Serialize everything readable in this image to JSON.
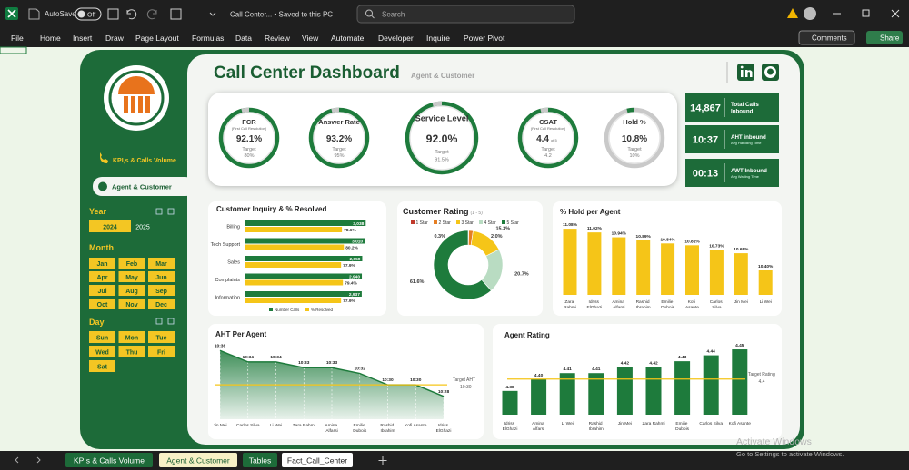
{
  "window": {
    "autosave": "AutoSave",
    "autosave_state": "Off",
    "file_title": "Call Center... • Saved to this PC",
    "search": "Search",
    "menu": [
      "File",
      "Home",
      "Insert",
      "Draw",
      "Page Layout",
      "Formulas",
      "Data",
      "Review",
      "View",
      "Automate",
      "Developer",
      "Inquire",
      "Power Pivot"
    ],
    "comments": "Comments",
    "share": "Share"
  },
  "sheet_tabs": [
    "KPIs & Calls Volume",
    "Agent & Customer",
    "Tables",
    "Fact_Call_Center"
  ],
  "watermark": {
    "title": "Activate Windows",
    "text": "Go to Settings to activate Windows."
  },
  "dashboard": {
    "title": "Call Center Dashboard",
    "subtitle": "Agent & Customer",
    "nav": [
      "KPI,s & Calls Volume",
      "Agent & Customer"
    ],
    "slicers": {
      "year": {
        "title": "Year",
        "items": [
          "2024",
          "2025"
        ]
      },
      "month": {
        "title": "Month",
        "items": [
          "Jan",
          "Feb",
          "Mar",
          "Apr",
          "May",
          "Jun",
          "Jul",
          "Aug",
          "Sep",
          "Oct",
          "Nov",
          "Dec"
        ]
      },
      "day": {
        "title": "Day",
        "items": [
          "Sun",
          "Mon",
          "Tue",
          "Wed",
          "Thu",
          "Fri",
          "Sat"
        ]
      }
    },
    "kpis": [
      {
        "name": "FCR",
        "note": "(First Call Resolution)",
        "value": "92.1%",
        "target_label": "Target",
        "target": "80%"
      },
      {
        "name": "Answer Rate",
        "value": "93.2%",
        "target_label": "Target",
        "target": "95%"
      },
      {
        "name": "Service Level",
        "value": "92.0%",
        "target_label": "Target",
        "target": "91.5%"
      },
      {
        "name": "CSAT",
        "note": "(First Call Resolution)",
        "value": "4.4",
        "value_note": "of 5",
        "target_label": "Target",
        "target": "4.2"
      },
      {
        "name": "Hold %",
        "value": "10.8%",
        "target_label": "Target",
        "target": "10%"
      }
    ],
    "cards": [
      {
        "value": "14,867",
        "title": "Total Calls Inbound"
      },
      {
        "value": "10:37",
        "title": "AHT inbound",
        "note": "Avg Handling Time"
      },
      {
        "value": "00:13",
        "title": "AWT Inbound",
        "note": "Avg Waiting Time"
      }
    ]
  },
  "chart_data": [
    {
      "type": "hbar",
      "title": "Customer Inquiry & % Resolved",
      "categories": [
        "Billing",
        "Tech Support",
        "Sales",
        "Complaints",
        "Information"
      ],
      "series": [
        {
          "name": "Number Calls",
          "color": "#1e7b3c",
          "values": [
            3038,
            3010,
            2950,
            2940,
            2937
          ],
          "value_labels": [
            "3,038",
            "3,010",
            "2,950",
            "2,940",
            "2,937"
          ]
        },
        {
          "name": "% Resolved",
          "color": "#f5c518",
          "axis": "x2",
          "values": [
            78.6,
            80.2,
            77.9,
            79.4,
            77.9
          ],
          "value_labels": [
            "78.6%",
            "80.2%",
            "77.9%",
            "79.4%",
            "77.9%"
          ]
        }
      ],
      "xlim": [
        0,
        3100
      ],
      "x2lim": [
        0,
        100
      ],
      "legend": "bottom"
    },
    {
      "type": "pie",
      "donut": true,
      "title": "Customer Rating",
      "subtitle": "(1 - 5)",
      "categories": [
        "1 Star",
        "2 Star",
        "3 Star",
        "4 Star",
        "5 Star"
      ],
      "values": [
        0.3,
        2.0,
        15.3,
        20.7,
        61.6
      ],
      "value_labels": [
        "0.3%",
        "2.0%",
        "15.3%",
        "20.7%",
        "61.6%"
      ],
      "colors": [
        "#c0392b",
        "#e67e22",
        "#f5c518",
        "#b9dcc2",
        "#1e7b3c"
      ],
      "legend": "top"
    },
    {
      "type": "bar",
      "title": "% Hold per Agent",
      "categories": [
        "Zara Rahmi",
        "Idriss ElGhazi",
        "Amina Alfarsi",
        "Rashid Ibrahim",
        "Emilie Dubois",
        "Kofi Asante",
        "Carlos Silva",
        "Jin Mei",
        "Li Wei"
      ],
      "values": [
        11.08,
        11.02,
        10.94,
        10.89,
        10.84,
        10.81,
        10.73,
        10.68,
        10.4
      ],
      "value_labels": [
        "11.08%",
        "11.02%",
        "10.94%",
        "10.89%",
        "10.84%",
        "10.81%",
        "10.73%",
        "10.68%",
        "10.40%"
      ],
      "color": "#f5c518",
      "ylim": [
        10,
        11.2
      ]
    },
    {
      "type": "area",
      "title": "AHT Per Agent",
      "categories": [
        "Jin Mei",
        "Carlos Silva",
        "Li Wei",
        "Zara Rahmi",
        "Amina Alfarsi",
        "Emilie Dubois",
        "Rashid Ibrahim",
        "Kofi Asante",
        "Idriss ElGhazi"
      ],
      "values": [
        636,
        634,
        634,
        633,
        633,
        632,
        630,
        630,
        628
      ],
      "value_labels": [
        "10:36",
        "10:34",
        "10:34",
        "10:33",
        "10:33",
        "10:32",
        "10:30",
        "10:30",
        "10:28"
      ],
      "color": "#1e7b3c",
      "ylim": [
        624,
        637
      ],
      "target": {
        "label": "Target AHT",
        "value": 630,
        "value_label": "10:30"
      }
    },
    {
      "type": "bar",
      "title": "Agent Rating",
      "categories": [
        "Idriss ElGhazi",
        "Amina Alfarsi",
        "Li Wei",
        "Rashid Ibrahim",
        "Jin Mei",
        "Zara Rahmi",
        "Emilie Dubois",
        "Carlos Silva",
        "Kofi Asante"
      ],
      "values": [
        4.38,
        4.4,
        4.41,
        4.41,
        4.42,
        4.42,
        4.43,
        4.44,
        4.45
      ],
      "value_labels": [
        "4.38",
        "4.40",
        "4.41",
        "4.41",
        "4.42",
        "4.42",
        "4.43",
        "4.44",
        "4.45"
      ],
      "color": "#1e7b3c",
      "ylim": [
        4.34,
        4.46
      ],
      "target": {
        "label": "Target Rating",
        "value": 4.4
      }
    }
  ]
}
